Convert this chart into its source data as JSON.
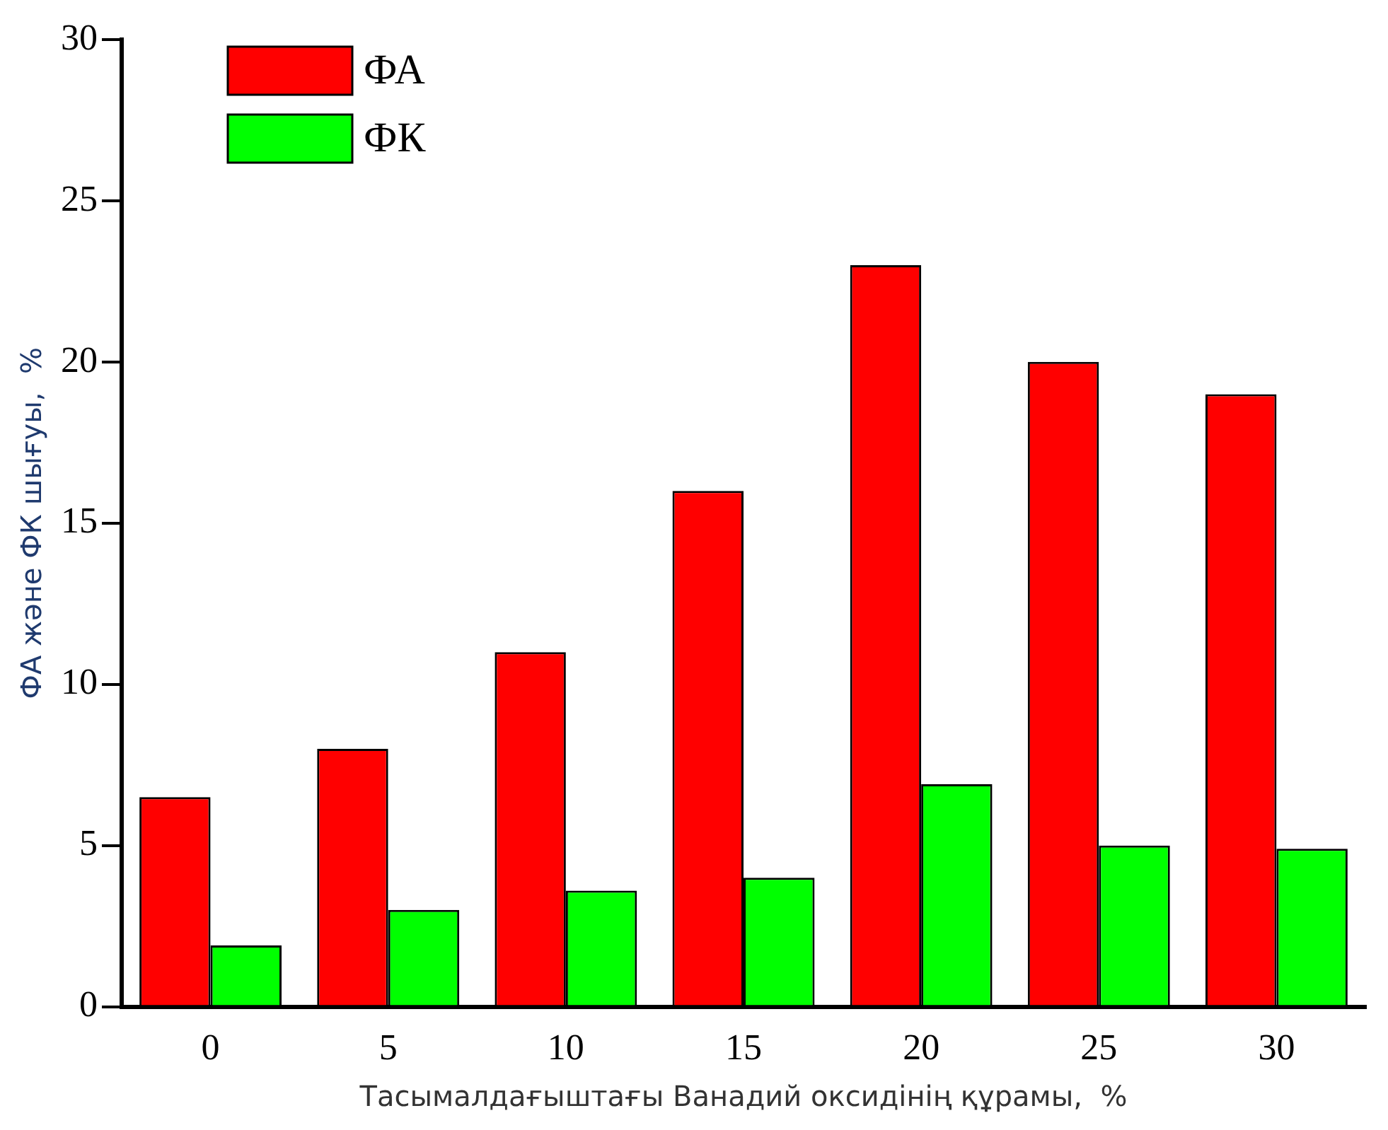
{
  "chart_data": {
    "type": "bar",
    "xlabel": "Тасымалдағыштағы Ванадий оксидінің құрамы,  %",
    "ylabel": "ФА және ФК шығуы,  %",
    "categories": [
      "0",
      "5",
      "10",
      "15",
      "20",
      "25",
      "30"
    ],
    "series": [
      {
        "name": "ФА",
        "color": "#ff0000",
        "values": [
          6.5,
          8,
          11,
          16,
          23,
          20,
          19
        ]
      },
      {
        "name": "ФК",
        "color": "#00ff00",
        "values": [
          1.9,
          3,
          3.6,
          4,
          6.9,
          5,
          4.9
        ]
      }
    ],
    "ylim": [
      0,
      30
    ],
    "yticks": [
      0,
      5,
      10,
      15,
      20,
      25,
      30
    ],
    "grid": false,
    "legend": "top left"
  }
}
